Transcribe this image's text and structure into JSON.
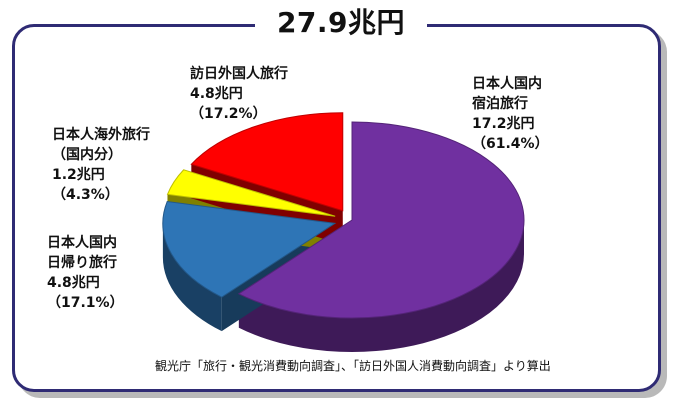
{
  "title": "27.9兆円",
  "chart_data": {
    "type": "pie",
    "total_label": "27.9兆円",
    "slices": [
      {
        "key": "domestic_overnight",
        "name_lines": [
          "日本人国内",
          "宿泊旅行"
        ],
        "value": 17.2,
        "value_label": "17.2兆円",
        "percent_label": "（61.4%）",
        "percent": 61.4,
        "color": "#7030a0"
      },
      {
        "key": "domestic_day",
        "name_lines": [
          "日本人国内",
          "日帰り旅行"
        ],
        "value": 4.8,
        "value_label": "4.8兆円",
        "percent_label": "（17.1%）",
        "percent": 17.1,
        "color": "#2e75b6"
      },
      {
        "key": "overseas_domestic_part",
        "name_lines": [
          "日本人海外旅行",
          "（国内分）"
        ],
        "value": 1.2,
        "value_label": "1.2兆円",
        "percent_label": "（4.3%）",
        "percent": 4.3,
        "color": "#ffff00"
      },
      {
        "key": "inbound",
        "name_lines": [
          "訪日外国人旅行"
        ],
        "value": 4.8,
        "value_label": "4.8兆円",
        "percent_label": "（17.2%）",
        "percent": 17.2,
        "color": "#ff0000"
      }
    ]
  },
  "source": "観光庁「旅行・観光消費動向調査」、「訪日外国人消費動向調査」より算出"
}
